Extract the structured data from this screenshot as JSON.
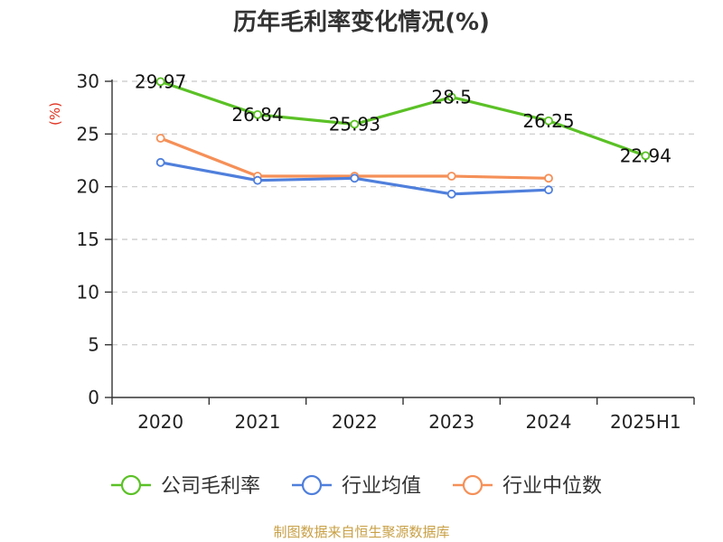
{
  "chart_data": {
    "type": "line",
    "title": "历年毛利率变化情况(%)",
    "ylabel": "(%)",
    "categories": [
      "2020",
      "2021",
      "2022",
      "2023",
      "2024",
      "2025H1"
    ],
    "ylim": [
      0,
      30
    ],
    "yticks": [
      0,
      5,
      10,
      15,
      20,
      25,
      30
    ],
    "grid": true,
    "legend_position": "bottom",
    "series": [
      {
        "name": "公司毛利率",
        "color": "#5bc126",
        "values": [
          29.97,
          26.84,
          25.93,
          28.5,
          26.25,
          22.94
        ],
        "labels": [
          "29.97",
          "26.84",
          "25.93",
          "28.5",
          "26.25",
          "22.94"
        ]
      },
      {
        "name": "行业均值",
        "color": "#4f7fdc",
        "values": [
          22.3,
          20.6,
          20.8,
          19.3,
          19.7,
          null
        ]
      },
      {
        "name": "行业中位数",
        "color": "#f59058",
        "values": [
          24.6,
          21.0,
          21.0,
          21.0,
          20.8,
          null
        ]
      }
    ]
  },
  "footer": {
    "source": "制图数据来自恒生聚源数据库"
  }
}
